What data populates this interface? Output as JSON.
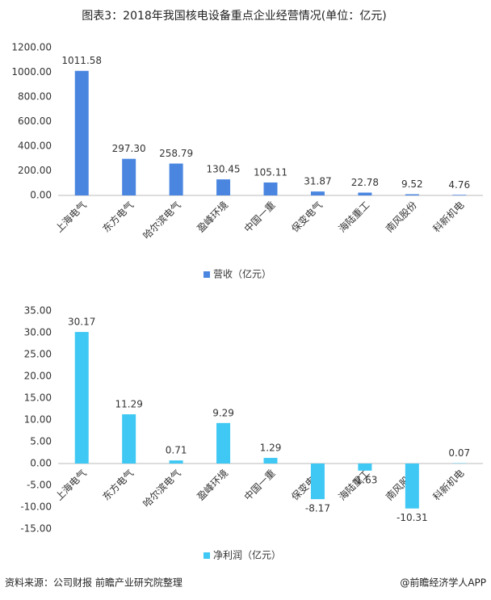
{
  "title": "图表3：2018年我国核电设备重点企业经营情况(单位：亿元)",
  "chart_data": [
    {
      "type": "bar",
      "categories": [
        "上海电气",
        "东方电气",
        "哈尔滨电气",
        "盈峰环境",
        "中国一重",
        "保变电气",
        "海陆重工",
        "南风股份",
        "科新机电"
      ],
      "series": [
        {
          "name": "营收（亿元）",
          "color": "#4a86e0",
          "values": [
            1011.58,
            297.3,
            258.79,
            130.45,
            105.11,
            31.87,
            22.78,
            9.52,
            4.76
          ],
          "value_labels": [
            "1011.58",
            "297.30",
            "258.79",
            "130.45",
            "105.11",
            "31.87",
            "22.78",
            "9.52",
            "4.76"
          ]
        }
      ],
      "ylim": [
        0,
        1200
      ],
      "yticks": [
        {
          "value": 0,
          "label": "0.00"
        },
        {
          "value": 200,
          "label": "200.00"
        },
        {
          "value": 400,
          "label": "400.00"
        },
        {
          "value": 600,
          "label": "600.00"
        },
        {
          "value": 800,
          "label": "800.00"
        },
        {
          "value": 1000,
          "label": "1000.00"
        },
        {
          "value": 1200,
          "label": "1200.00"
        }
      ],
      "grid": false,
      "legend": "bottom"
    },
    {
      "type": "bar",
      "categories": [
        "上海电气",
        "东方电气",
        "哈尔滨电气",
        "盈峰环境",
        "中国一重",
        "保变电气",
        "海陆重工",
        "南风股份",
        "科新机电"
      ],
      "series": [
        {
          "name": "净利润（亿元）",
          "color": "#3fc8f4",
          "values": [
            30.17,
            11.29,
            0.71,
            9.29,
            1.29,
            -8.17,
            -1.63,
            -10.31,
            0.07
          ]
        }
      ],
      "ylim": [
        -15,
        35
      ],
      "yticks": [
        {
          "value": -15,
          "label": "-15.00"
        },
        {
          "value": -10,
          "label": "-10.00"
        },
        {
          "value": -5,
          "label": "-5.00"
        },
        {
          "value": 0,
          "label": "0.00"
        },
        {
          "value": 5,
          "label": "5.00"
        },
        {
          "value": 10,
          "label": "10.00"
        },
        {
          "value": 15,
          "label": "15.00"
        },
        {
          "value": 20,
          "label": "20.00"
        },
        {
          "value": 25,
          "label": "25.00"
        },
        {
          "value": 30,
          "label": "30.00"
        },
        {
          "value": 35,
          "label": "35.00"
        }
      ],
      "grid": false,
      "legend": "bottom"
    }
  ],
  "source": "资料来源：公司财报 前瞻产业研究院整理",
  "credit": "@前瞻经济学人APP"
}
